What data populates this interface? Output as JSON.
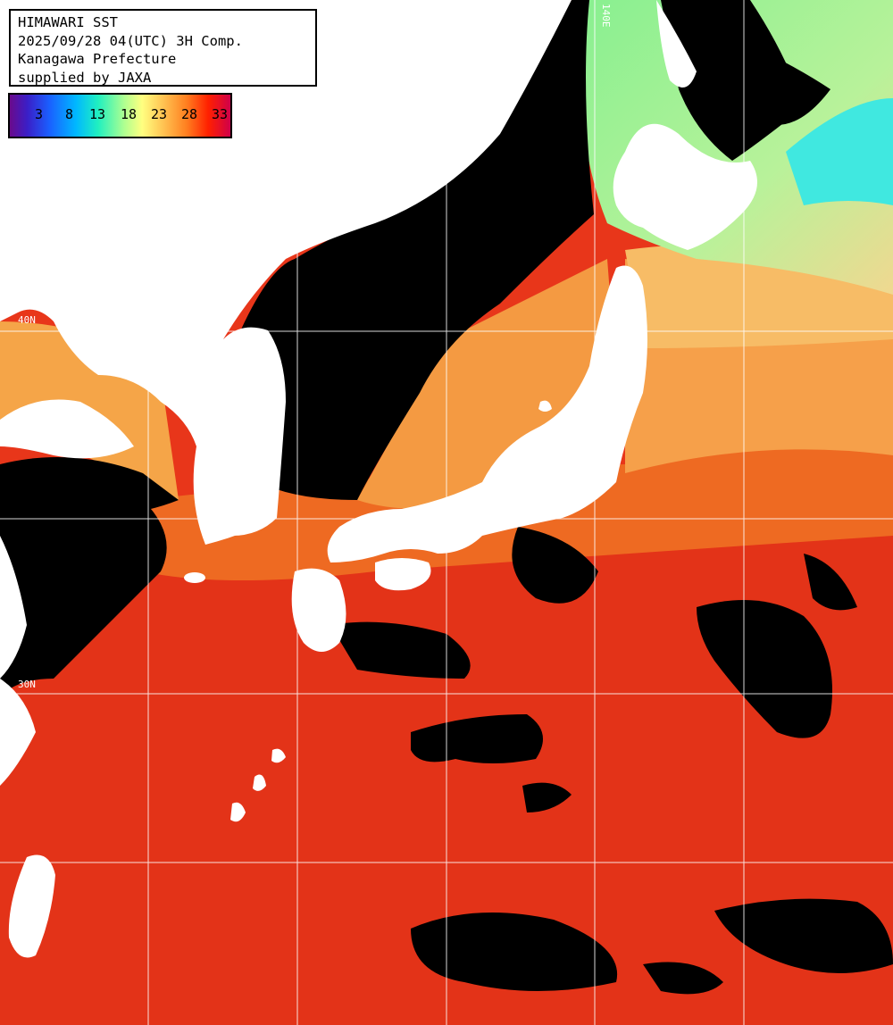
{
  "title": {
    "line1": "HIMAWARI SST",
    "line2": "2025/09/28 04(UTC) 3H Comp.",
    "line3": "Kanagawa Prefecture",
    "line4": "supplied by JAXA"
  },
  "legend": {
    "labels": [
      "3",
      "8",
      "13",
      "18",
      "23",
      "28",
      "33"
    ],
    "unit": ""
  },
  "grid_labels": {
    "lon_top": "140E",
    "lat_left_1": "40N",
    "lat_left_2": "30N"
  },
  "colors": {
    "land": "#ffffff",
    "cloud": "#000000",
    "warm_sea": "#e8361a",
    "mid_sea": "#f5892a",
    "cool_sea": "#f7b860",
    "cold_sea": "#98ee88",
    "grid": "#ffffff"
  }
}
